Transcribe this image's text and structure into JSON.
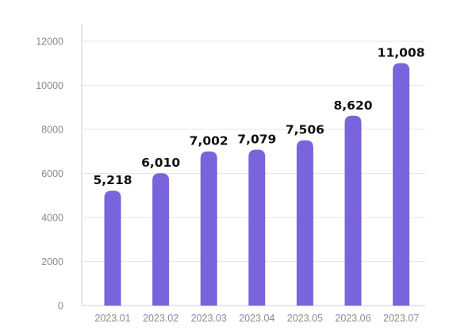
{
  "chart_data": {
    "type": "bar",
    "categories": [
      "2023.01",
      "2023.02",
      "2023.03",
      "2023.04",
      "2023.05",
      "2023.06",
      "2023.07"
    ],
    "values": [
      5218,
      6010,
      7002,
      7079,
      7506,
      8620,
      11008
    ],
    "value_labels": [
      "5,218",
      "6,010",
      "7,002",
      "7,079",
      "7,506",
      "8,620",
      "11,008"
    ],
    "ylim": [
      0,
      12000
    ],
    "yticks": [
      0,
      2000,
      4000,
      6000,
      8000,
      10000,
      12000
    ],
    "ytick_labels": [
      "0",
      "2000",
      "4000",
      "6000",
      "8000",
      "10000",
      "12000"
    ],
    "grid": true,
    "bar_color": "#7B63DC",
    "grid_color": "#e6e6e6",
    "title": "",
    "xlabel": "",
    "ylabel": ""
  }
}
